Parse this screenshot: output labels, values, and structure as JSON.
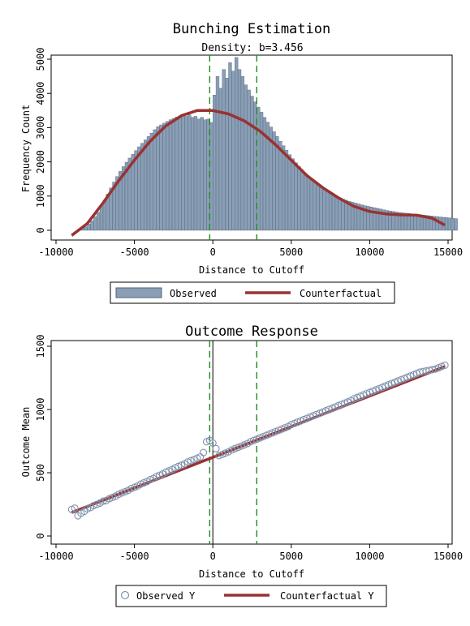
{
  "chart_data": [
    {
      "type": "bar",
      "title": "Bunching Estimation",
      "subtitle": "Density: b=3.456",
      "xlabel": "Distance to Cutoff",
      "ylabel": "Frequency Count",
      "xlim": [
        -10000,
        15000
      ],
      "ylim": [
        0,
        5000
      ],
      "xticks": [
        "-10000",
        "-5000",
        "0",
        "5000",
        "10000",
        "15000"
      ],
      "yticks": [
        "0",
        "1000",
        "2000",
        "3000",
        "4000",
        "5000"
      ],
      "vlines": {
        "lower": -200,
        "upper": 2800,
        "style": "green-dashed"
      },
      "bins": {
        "start": -8600,
        "width": 200
      },
      "observed": [
        40,
        60,
        100,
        180,
        280,
        400,
        530,
        700,
        880,
        1060,
        1240,
        1410,
        1570,
        1720,
        1860,
        1990,
        2110,
        2220,
        2330,
        2440,
        2540,
        2640,
        2740,
        2840,
        2940,
        3030,
        3080,
        3130,
        3180,
        3230,
        3270,
        3310,
        3340,
        3360,
        3330,
        3370,
        3300,
        3330,
        3250,
        3300,
        3230,
        3250,
        3150,
        3950,
        4500,
        4150,
        4700,
        4450,
        4900,
        4650,
        5050,
        4700,
        4500,
        4250,
        4100,
        3920,
        3750,
        3600,
        3450,
        3300,
        3160,
        3020,
        2880,
        2740,
        2600,
        2470,
        2340,
        2210,
        2090,
        1970,
        1860,
        1760,
        1660,
        1570,
        1480,
        1400,
        1320,
        1250,
        1190,
        1130,
        1080,
        1030,
        990,
        950,
        910,
        880,
        850,
        820,
        795,
        770,
        745,
        720,
        700,
        680,
        660,
        640,
        620,
        600,
        580,
        565,
        550,
        535,
        520,
        510,
        500,
        490,
        480,
        470,
        460,
        450,
        440,
        430,
        420,
        410,
        400,
        390,
        380,
        370,
        360,
        350,
        340
      ],
      "counterfactual_x": [
        -9000,
        -8000,
        -7000,
        -6000,
        -5000,
        -4000,
        -3000,
        -2000,
        -1000,
        0,
        1000,
        2000,
        3000,
        4000,
        5000,
        6000,
        7000,
        8000,
        9000,
        10000,
        11000,
        12000,
        13000,
        14000,
        14800
      ],
      "counterfactual_y": [
        -150,
        200,
        800,
        1450,
        2050,
        2600,
        3050,
        3350,
        3500,
        3500,
        3400,
        3200,
        2900,
        2500,
        2050,
        1600,
        1250,
        950,
        700,
        550,
        480,
        450,
        440,
        350,
        150
      ],
      "legend": [
        "Observed",
        "Counterfactual"
      ],
      "colors": {
        "bars": "#8a9eb6",
        "bar_edge": "#4f6479",
        "counterfactual": "#9a3232",
        "vline": "#1e8c1e"
      }
    },
    {
      "type": "scatter",
      "title": "Outcome Response",
      "xlabel": "Distance to Cutoff",
      "ylabel": "Outcome Mean",
      "xlim": [
        -10000,
        15000
      ],
      "ylim": [
        0,
        1500
      ],
      "xticks": [
        "-10000",
        "-5000",
        "0",
        "5000",
        "10000",
        "15000"
      ],
      "yticks": [
        "0",
        "500",
        "1000",
        "1500"
      ],
      "vlines": {
        "lower": -200,
        "upper": 2800,
        "center": 0
      },
      "observed_x": [
        -9000,
        -8800,
        -8600,
        -8400,
        -8200,
        -8000,
        -7800,
        -7600,
        -7400,
        -7200,
        -7000,
        -6800,
        -6600,
        -6400,
        -6200,
        -6000,
        -5800,
        -5600,
        -5400,
        -5200,
        -5000,
        -4800,
        -4600,
        -4400,
        -4200,
        -4000,
        -3800,
        -3600,
        -3400,
        -3200,
        -3000,
        -2800,
        -2600,
        -2400,
        -2200,
        -2000,
        -1800,
        -1600,
        -1400,
        -1200,
        -1000,
        -800,
        -600,
        -400,
        -200,
        0,
        200,
        400,
        600,
        800,
        1000,
        1200,
        1400,
        1600,
        1800,
        2000,
        2200,
        2400,
        2600,
        2800,
        3000,
        3200,
        3400,
        3600,
        3800,
        4000,
        4200,
        4400,
        4600,
        4800,
        5000,
        5200,
        5400,
        5600,
        5800,
        6000,
        6200,
        6400,
        6600,
        6800,
        7000,
        7200,
        7400,
        7600,
        7800,
        8000,
        8200,
        8400,
        8600,
        8800,
        9000,
        9200,
        9400,
        9600,
        9800,
        10000,
        10200,
        10400,
        10600,
        10800,
        11000,
        11200,
        11400,
        11600,
        11800,
        12000,
        12200,
        12400,
        12600,
        12800,
        13000,
        13200,
        13400,
        13600,
        13800,
        14000,
        14200,
        14400,
        14600,
        14800
      ],
      "observed_y": [
        210,
        220,
        160,
        180,
        195,
        215,
        225,
        240,
        250,
        260,
        275,
        280,
        295,
        305,
        315,
        330,
        340,
        350,
        360,
        375,
        385,
        395,
        410,
        420,
        430,
        445,
        455,
        470,
        480,
        490,
        505,
        515,
        525,
        540,
        550,
        560,
        570,
        585,
        595,
        605,
        615,
        625,
        660,
        745,
        755,
        735,
        690,
        635,
        645,
        655,
        665,
        680,
        690,
        700,
        710,
        720,
        730,
        745,
        755,
        765,
        775,
        785,
        795,
        805,
        815,
        825,
        835,
        845,
        855,
        865,
        880,
        890,
        900,
        910,
        920,
        930,
        940,
        950,
        960,
        970,
        980,
        990,
        1000,
        1010,
        1020,
        1030,
        1040,
        1050,
        1060,
        1070,
        1085,
        1095,
        1105,
        1115,
        1125,
        1135,
        1145,
        1155,
        1165,
        1175,
        1185,
        1195,
        1205,
        1215,
        1225,
        1235,
        1245,
        1255,
        1265,
        1275,
        1285,
        1295,
        1300,
        1305,
        1310,
        1315,
        1320,
        1330,
        1340,
        1350
      ],
      "counterfactual_x": [
        -9000,
        14800
      ],
      "counterfactual_y": [
        185,
        1340
      ],
      "legend": [
        "Observed Y",
        "Counterfactual Y"
      ],
      "colors": {
        "points": "#7f93ad",
        "counterfactual": "#9a3232",
        "vline": "#1e8c1e",
        "center": "#000000"
      }
    }
  ]
}
